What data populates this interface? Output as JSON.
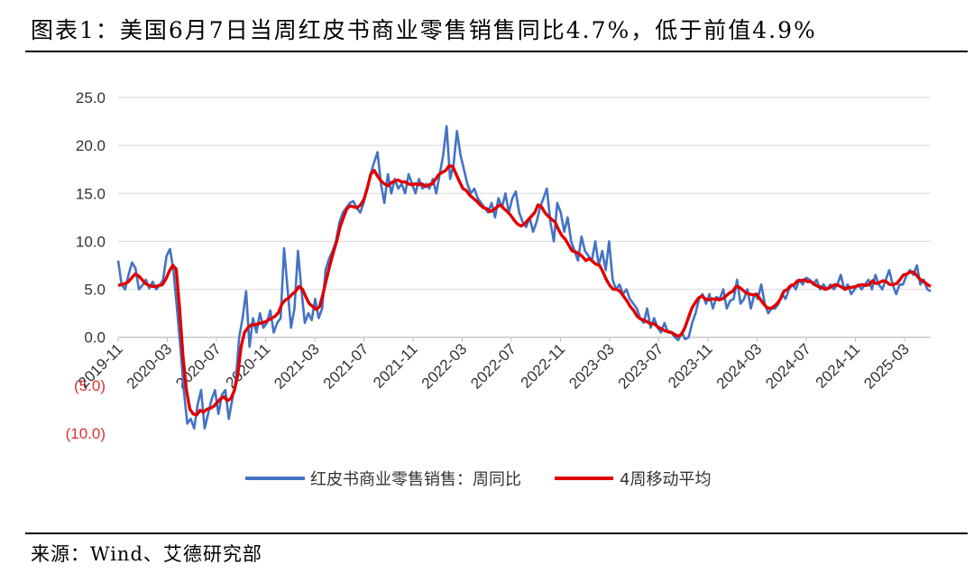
{
  "header": {
    "title": "图表1：美国6月7日当周红皮书商业零售销售同比4.7%，低于前值4.9%"
  },
  "footer": {
    "source": "来源：Wind、艾德研究部"
  },
  "chart_data": {
    "type": "line",
    "y_ticks": [
      "25.0",
      "20.0",
      "15.0",
      "10.0",
      "5.0",
      "0.0",
      "(5.0)",
      "(10.0)"
    ],
    "ylim": [
      -10,
      25
    ],
    "x_ticks": [
      "2019-11",
      "2020-03",
      "2020-07",
      "2020-11",
      "2021-03",
      "2021-07",
      "2021-11",
      "2022-03",
      "2022-07",
      "2022-11",
      "2023-03",
      "2023-07",
      "2023-11",
      "2024-03",
      "2024-07",
      "2024-11",
      "2025-03"
    ],
    "colors": {
      "weekly": "#4472c4",
      "avg": "#e00000"
    },
    "series": [
      {
        "name": "红皮书商业零售销售：周同比",
        "color": "#4472c4",
        "values": [
          8.0,
          5.5,
          5.0,
          6.5,
          7.8,
          7.2,
          5.0,
          5.4,
          6.0,
          5.1,
          5.8,
          5.0,
          5.4,
          6.0,
          8.5,
          9.2,
          7.0,
          3.0,
          -1.0,
          -5.5,
          -9.0,
          -8.5,
          -9.5,
          -7.0,
          -5.5,
          -9.5,
          -8.0,
          -6.5,
          -5.5,
          -8.0,
          -6.0,
          -5.5,
          -8.5,
          -6.5,
          -4.5,
          0.0,
          2.0,
          4.8,
          -1.0,
          2.0,
          0.5,
          2.5,
          1.0,
          1.5,
          2.8,
          0.5,
          1.5,
          2.0,
          9.3,
          5.0,
          1.0,
          3.0,
          9.0,
          5.0,
          1.5,
          2.5,
          1.8,
          4.0,
          2.0,
          3.0,
          7.0,
          8.2,
          9.0,
          10.0,
          12.0,
          13.0,
          13.5,
          14.0,
          14.2,
          13.5,
          13.0,
          14.0,
          15.5,
          17.0,
          18.2,
          19.3,
          16.0,
          14.0,
          17.0,
          15.0,
          16.5,
          15.5,
          16.0,
          15.0,
          17.0,
          16.0,
          15.0,
          16.5,
          15.5,
          16.0,
          15.5,
          16.5,
          15.0,
          17.0,
          19.0,
          22.0,
          16.5,
          18.0,
          21.5,
          19.0,
          17.5,
          16.0,
          15.0,
          15.5,
          14.5,
          14.0,
          13.5,
          13.0,
          14.0,
          12.5,
          14.5,
          13.5,
          15.0,
          13.0,
          14.5,
          15.2,
          13.0,
          12.0,
          11.5,
          12.5,
          11.0,
          12.0,
          13.5,
          14.5,
          15.5,
          12.0,
          10.0,
          14.0,
          13.0,
          11.0,
          12.5,
          10.0,
          9.0,
          8.0,
          10.5,
          9.0,
          8.5,
          8.0,
          10.0,
          7.5,
          9.0,
          7.0,
          10.0,
          6.0,
          5.0,
          5.5,
          4.5,
          5.0,
          4.0,
          3.5,
          3.0,
          2.0,
          1.5,
          3.0,
          1.0,
          2.0,
          1.0,
          0.5,
          1.5,
          0.5,
          0.5,
          0.0,
          -0.3,
          0.5,
          -0.2,
          0.0,
          1.5,
          2.5,
          4.0,
          4.5,
          3.5,
          4.5,
          3.0,
          4.2,
          4.0,
          5.0,
          3.0,
          3.8,
          4.0,
          6.0,
          3.5,
          4.0,
          5.0,
          3.0,
          4.5,
          4.0,
          5.5,
          3.5,
          2.5,
          3.0,
          3.0,
          3.5,
          4.5,
          4.0,
          5.0,
          5.5,
          5.0,
          6.0,
          5.5,
          6.2,
          6.0,
          5.5,
          6.0,
          5.0,
          5.5,
          5.0,
          5.5,
          5.0,
          5.5,
          6.5,
          5.0,
          5.5,
          4.5,
          5.0,
          5.5,
          5.0,
          5.5,
          6.0,
          5.0,
          6.5,
          5.5,
          5.0,
          6.0,
          7.0,
          5.5,
          4.5,
          5.5,
          5.5,
          6.5,
          7.0,
          6.5,
          7.5,
          5.5,
          6.0,
          5.0,
          4.8
        ]
      },
      {
        "name": "4周移动平均",
        "color": "#e00000",
        "values": [
          5.4,
          5.5,
          5.6,
          5.8,
          6.2,
          6.6,
          6.4,
          6.0,
          5.6,
          5.4,
          5.3,
          5.3,
          5.4,
          5.5,
          6.1,
          6.9,
          7.5,
          7.1,
          3.0,
          -2.0,
          -5.5,
          -7.5,
          -8.0,
          -8.1,
          -7.6,
          -7.8,
          -7.5,
          -7.4,
          -7.2,
          -6.8,
          -6.4,
          -6.2,
          -6.6,
          -6.4,
          -5.6,
          -4.0,
          -1.0,
          0.5,
          1.0,
          1.3,
          1.3,
          1.4,
          1.5,
          1.6,
          1.8,
          2.0,
          2.2,
          2.6,
          3.5,
          3.9,
          4.1,
          4.5,
          4.8,
          5.3,
          5.0,
          4.2,
          3.5,
          3.2,
          2.9,
          3.2,
          4.5,
          6.0,
          7.5,
          8.8,
          10.0,
          11.5,
          12.5,
          13.4,
          13.7,
          13.6,
          13.5,
          13.8,
          14.4,
          15.6,
          17.0,
          17.4,
          16.8,
          16.3,
          16.0,
          15.8,
          16.1,
          16.3,
          16.4,
          16.2,
          16.2,
          16.0,
          15.9,
          16.0,
          15.9,
          16.0,
          15.7,
          15.9,
          16.0,
          16.5,
          17.0,
          17.2,
          17.4,
          17.9,
          17.8,
          17.0,
          16.2,
          15.5,
          15.3,
          14.8,
          14.5,
          14.2,
          13.8,
          13.5,
          13.4,
          13.1,
          13.3,
          13.6,
          13.8,
          13.4,
          13.1,
          12.7,
          12.2,
          11.8,
          11.6,
          11.8,
          12.2,
          12.6,
          13.0,
          13.8,
          13.6,
          13.0,
          12.6,
          12.3,
          12.0,
          11.2,
          10.6,
          10.2,
          9.6,
          9.0,
          8.9,
          8.7,
          8.4,
          8.0,
          8.2,
          7.9,
          7.6,
          7.5,
          6.8,
          6.0,
          5.4,
          5.0,
          5.0,
          4.8,
          4.3,
          3.8,
          3.2,
          2.8,
          2.2,
          1.9,
          1.8,
          1.6,
          1.4,
          1.4,
          1.1,
          0.9,
          0.7,
          0.6,
          0.5,
          0.3,
          0.1,
          0.3,
          1.0,
          2.0,
          3.0,
          3.6,
          4.1,
          4.3,
          4.0,
          3.9,
          4.0,
          4.0,
          3.9,
          4.0,
          4.3,
          4.6,
          4.8,
          5.3,
          5.2,
          4.9,
          4.6,
          4.5,
          4.4,
          4.5,
          4.0,
          3.5,
          3.1,
          3.0,
          3.2,
          3.5,
          4.0,
          4.8,
          5.0,
          5.4,
          5.5,
          5.9,
          5.9,
          6.0,
          5.8,
          5.8,
          5.5,
          5.3,
          5.2,
          5.0,
          5.1,
          5.3,
          5.5,
          5.4,
          5.2,
          5.0,
          5.2,
          5.2,
          5.3,
          5.4,
          5.5,
          5.4,
          5.5,
          5.9,
          5.6,
          5.7,
          5.9,
          5.8,
          5.5,
          5.5,
          5.6,
          6.0,
          6.5,
          6.6,
          6.8,
          6.8,
          6.4,
          6.0,
          5.8,
          5.5,
          5.3
        ]
      }
    ],
    "legend": {
      "position": "bottom"
    },
    "grid": true
  }
}
